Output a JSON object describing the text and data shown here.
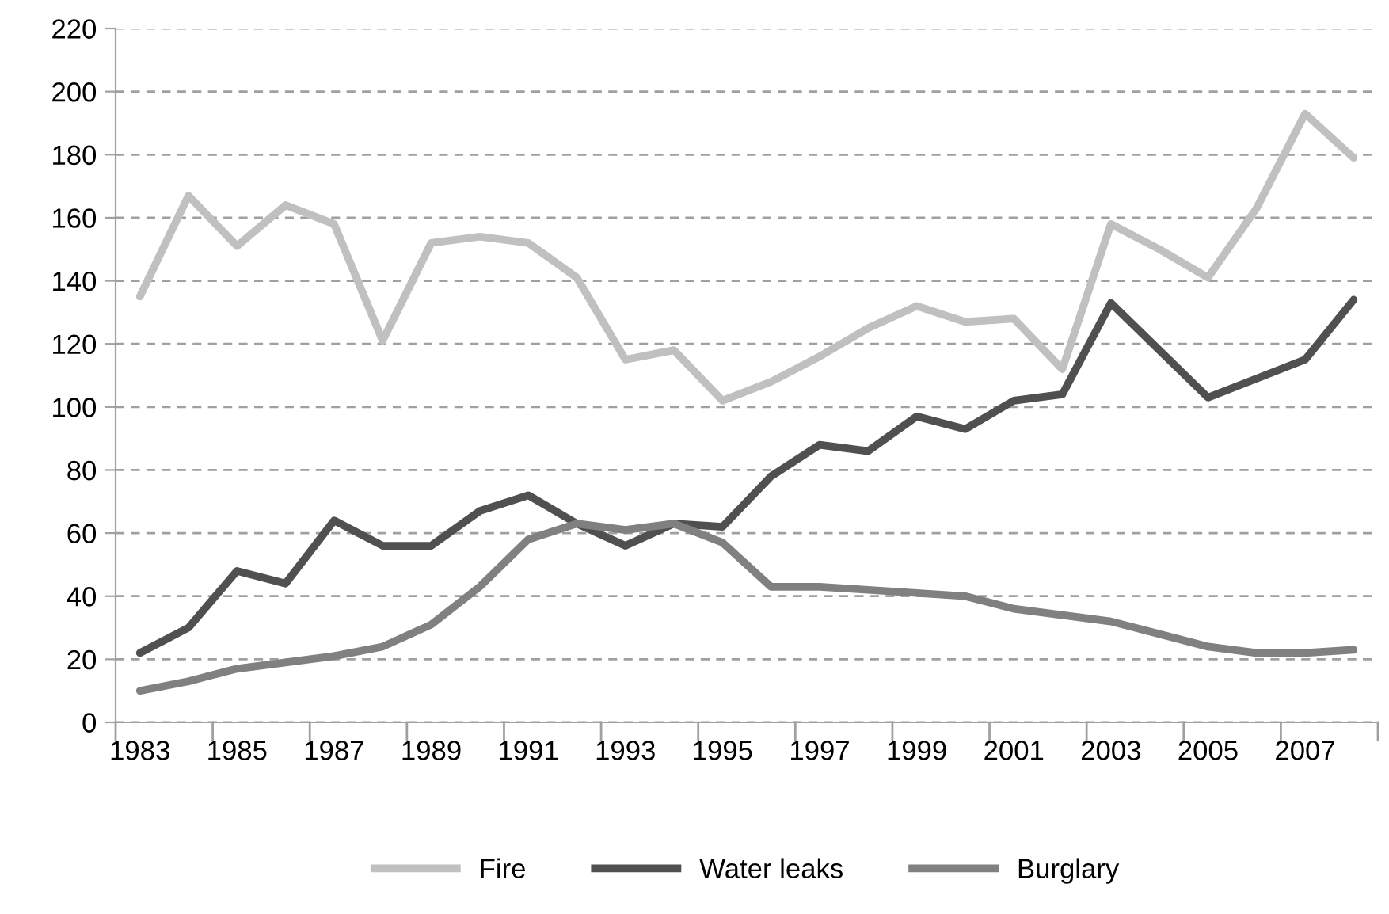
{
  "chart_data": {
    "type": "line",
    "categories": [
      "1983",
      null,
      "1985",
      null,
      "1987",
      null,
      "1989",
      null,
      "1991",
      null,
      "1993",
      null,
      "1995",
      null,
      "1997",
      null,
      "1999",
      null,
      "2001",
      null,
      "2003",
      null,
      "2005",
      null,
      "2007",
      null
    ],
    "series": [
      {
        "name": "Fire",
        "color": "#c0c0c0",
        "values": [
          135,
          167,
          151,
          164,
          158,
          121,
          152,
          154,
          152,
          141,
          115,
          118,
          102,
          108,
          116,
          125,
          132,
          127,
          128,
          112,
          158,
          150,
          141,
          163,
          193,
          179
        ]
      },
      {
        "name": "Water leaks",
        "color": "#505050",
        "values": [
          22,
          30,
          48,
          44,
          64,
          56,
          56,
          67,
          72,
          63,
          56,
          63,
          62,
          78,
          88,
          86,
          97,
          93,
          102,
          104,
          133,
          118,
          103,
          109,
          115,
          134
        ]
      },
      {
        "name": "Burglary",
        "color": "#808080",
        "values": [
          10,
          13,
          17,
          19,
          21,
          24,
          31,
          43,
          58,
          63,
          61,
          63,
          57,
          43,
          43,
          42,
          41,
          40,
          36,
          34,
          32,
          28,
          24,
          22,
          22,
          23
        ]
      }
    ],
    "ylim": [
      0,
      220
    ],
    "yticks": [
      0,
      20,
      40,
      60,
      80,
      100,
      120,
      140,
      160,
      180,
      200,
      220
    ],
    "grid": "y",
    "legend": "bottom",
    "marker": "none",
    "line_style": "solid"
  }
}
